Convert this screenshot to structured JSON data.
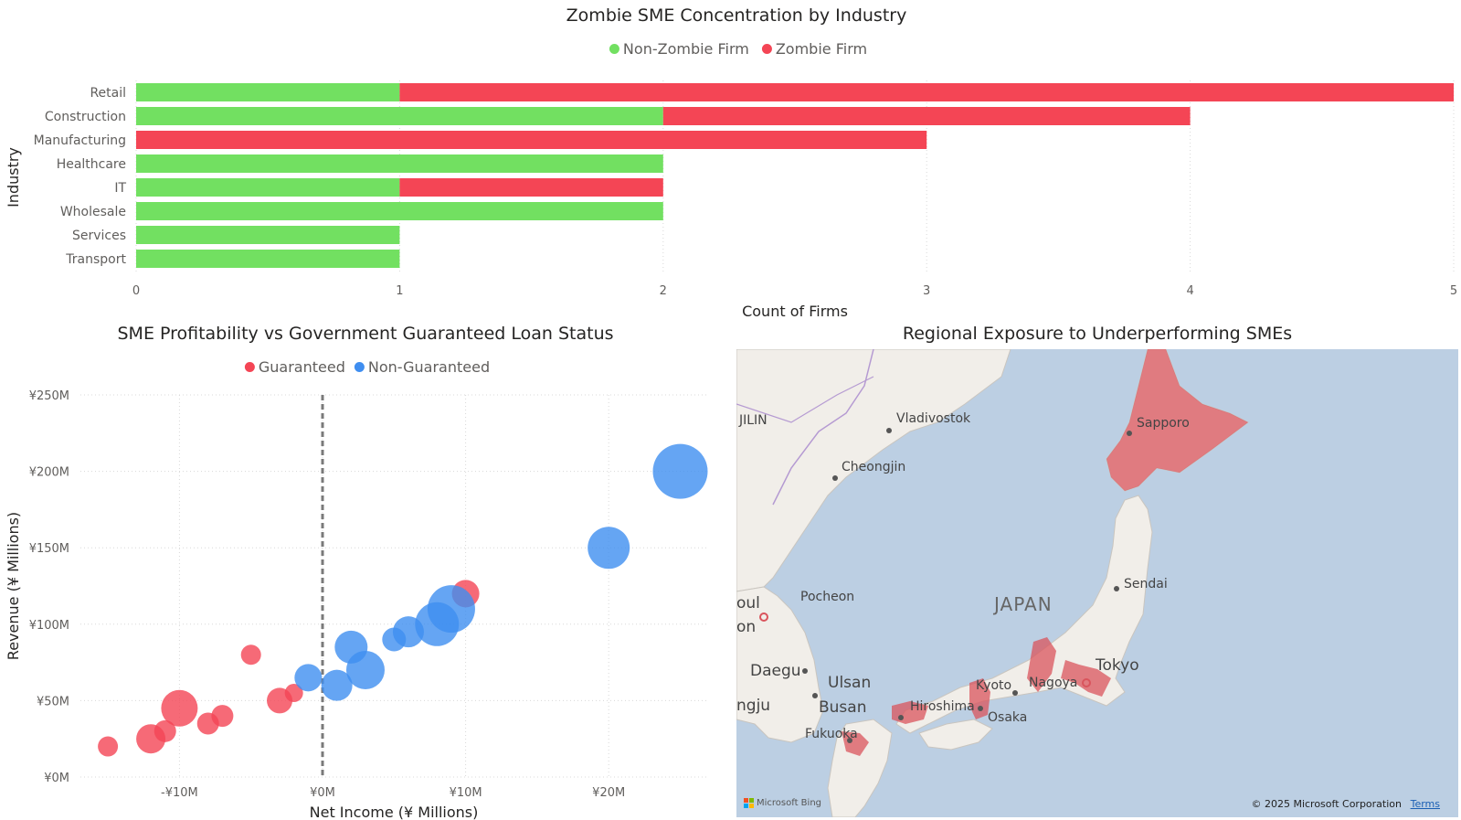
{
  "bar_chart": {
    "title": "Zombie SME Concentration by Industry",
    "legend": [
      {
        "label": "Non-Zombie Firm",
        "color": "#72e061"
      },
      {
        "label": "Zombie Firm",
        "color": "#f44555"
      }
    ],
    "ylabel": "Industry",
    "xlabel": "Count of Firms",
    "xticks": [
      "0",
      "1",
      "2",
      "3",
      "4",
      "5"
    ]
  },
  "scatter_chart": {
    "title": "SME Profitability vs Government Guaranteed Loan Status",
    "legend": [
      {
        "label": "Guaranteed",
        "color": "#f44555"
      },
      {
        "label": "Non-Guaranteed",
        "color": "#3f8ef0"
      }
    ],
    "ylabel": "Revenue (¥ Millions)",
    "xlabel": "Net Income (¥ Millions)",
    "yticks": [
      "¥250M",
      "¥200M",
      "¥150M",
      "¥100M",
      "¥50M",
      "¥0M"
    ],
    "xticks": [
      "-¥10M",
      "¥0M",
      "¥10M",
      "¥20M"
    ]
  },
  "map": {
    "title": "Regional Exposure to Underperforming SMEs",
    "labels": {
      "jilin": "JILIN",
      "vladivostok": "Vladivostok",
      "cheongjin": "Cheongjin",
      "sapporo": "Sapporo",
      "pocheon": "Pocheon",
      "oul": "oul",
      "on": "on",
      "japan": "JAPAN",
      "sendai": "Sendai",
      "tokyo": "Tokyo",
      "daegu": "Daegu",
      "ulsan": "Ulsan",
      "busan": "Busan",
      "ngju": "ngju",
      "kyoto": "Kyoto",
      "nagoya": "Nagoya",
      "hiroshima": "Hiroshima",
      "osaka": "Osaka",
      "fukuoka": "Fukuoka"
    },
    "bing": "Microsoft Bing",
    "copyright": "© 2025 Microsoft Corporation",
    "terms": "Terms",
    "highlight_color": "#d9545c"
  },
  "chart_data": [
    {
      "type": "bar",
      "stacked": true,
      "orientation": "horizontal",
      "title": "Zombie SME Concentration by Industry",
      "xlabel": "Count of Firms",
      "ylabel": "Industry",
      "xlim": [
        0,
        5
      ],
      "categories": [
        "Retail",
        "Construction",
        "Manufacturing",
        "Healthcare",
        "IT",
        "Wholesale",
        "Services",
        "Transport"
      ],
      "series": [
        {
          "name": "Non-Zombie Firm",
          "color": "#72e061",
          "values": [
            1,
            2,
            0,
            2,
            1,
            2,
            1,
            1
          ]
        },
        {
          "name": "Zombie Firm",
          "color": "#f44555",
          "values": [
            4,
            2,
            3,
            0,
            1,
            0,
            0,
            0
          ]
        }
      ],
      "legend": "top-center",
      "grid": true
    },
    {
      "type": "scatter",
      "title": "SME Profitability vs Government Guaranteed Loan Status",
      "xlabel": "Net Income (¥ Millions)",
      "ylabel": "Revenue (¥ Millions)",
      "xlim": [
        -15,
        27
      ],
      "ylim": [
        0,
        250
      ],
      "reference_line_x": 0,
      "legend": "top-center",
      "grid": true,
      "series": [
        {
          "name": "Guaranteed",
          "color": "#f44555",
          "points": [
            {
              "x": -15,
              "y": 20,
              "r": 11
            },
            {
              "x": -12,
              "y": 25,
              "r": 16
            },
            {
              "x": -11,
              "y": 30,
              "r": 12
            },
            {
              "x": -10,
              "y": 45,
              "r": 20
            },
            {
              "x": -8,
              "y": 35,
              "r": 12
            },
            {
              "x": -7,
              "y": 40,
              "r": 12
            },
            {
              "x": -5,
              "y": 80,
              "r": 11
            },
            {
              "x": -3,
              "y": 50,
              "r": 14
            },
            {
              "x": -2,
              "y": 55,
              "r": 10
            },
            {
              "x": 10,
              "y": 120,
              "r": 15
            }
          ]
        },
        {
          "name": "Non-Guaranteed",
          "color": "#3f8ef0",
          "points": [
            {
              "x": -1,
              "y": 65,
              "r": 15
            },
            {
              "x": 1,
              "y": 60,
              "r": 17
            },
            {
              "x": 2,
              "y": 85,
              "r": 18
            },
            {
              "x": 3,
              "y": 70,
              "r": 21
            },
            {
              "x": 5,
              "y": 90,
              "r": 13
            },
            {
              "x": 6,
              "y": 95,
              "r": 17
            },
            {
              "x": 8,
              "y": 100,
              "r": 24
            },
            {
              "x": 9,
              "y": 110,
              "r": 26
            },
            {
              "x": 20,
              "y": 150,
              "r": 23
            },
            {
              "x": 25,
              "y": 200,
              "r": 30
            }
          ]
        }
      ]
    }
  ]
}
